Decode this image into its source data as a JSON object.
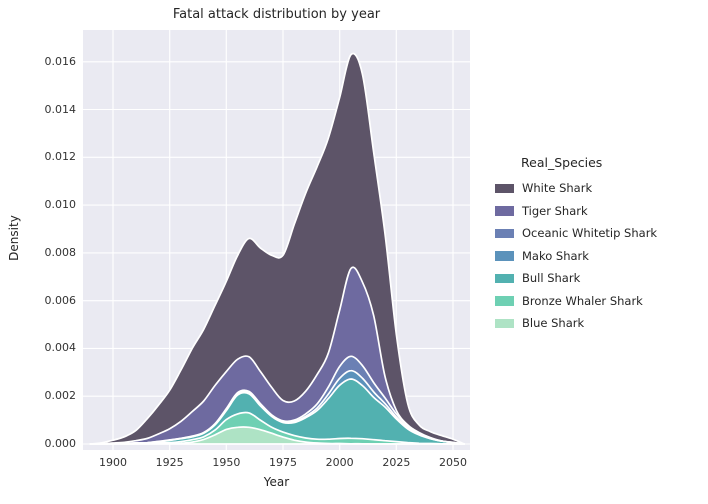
{
  "colors": {
    "figure_bg": "#ffffff",
    "plot_bg": "#eaeaf2",
    "grid": "#ffffff",
    "boundary_stroke": "#ffffff",
    "text": "#262626"
  },
  "chart_data": {
    "type": "area",
    "subtype": "stacked-kde-density",
    "title": "Fatal attack distribution by year",
    "xlabel": "Year",
    "ylabel": "Density",
    "legend_title": "Real_Species",
    "legend_position": "right",
    "grid": true,
    "xlim": [
      1887,
      2057
    ],
    "ylim": [
      0,
      0.0172
    ],
    "x_tick_values": [
      1900,
      1925,
      1950,
      1975,
      2000,
      2025,
      2050
    ],
    "x_tick_labels": [
      "1900",
      "1925",
      "1950",
      "1975",
      "2000",
      "2025",
      "2050"
    ],
    "y_tick_values": [
      0,
      0.002,
      0.004,
      0.006,
      0.008,
      0.01,
      0.012,
      0.014,
      0.016
    ],
    "y_tick_labels": [
      "0.000",
      "0.002",
      "0.004",
      "0.006",
      "0.008",
      "0.010",
      "0.012",
      "0.014",
      "0.016"
    ],
    "density_scale": 0.0001,
    "x": [
      1890,
      1895,
      1900,
      1905,
      1910,
      1915,
      1920,
      1925,
      1930,
      1935,
      1940,
      1945,
      1950,
      1955,
      1960,
      1965,
      1970,
      1975,
      1980,
      1985,
      1990,
      1995,
      2000,
      2005,
      2010,
      2015,
      2020,
      2025,
      2030,
      2035,
      2040,
      2045,
      2050,
      2055
    ],
    "series": [
      {
        "name": "White Shark",
        "color": "#5d5468",
        "values": [
          0,
          0.4,
          1.2,
          2.3,
          4.2,
          8.2,
          12,
          16.1,
          21.5,
          26.5,
          30,
          33.5,
          37.8,
          43.5,
          49.5,
          51.7,
          55.3,
          60.8,
          74,
          82.9,
          87,
          90,
          89,
          89.5,
          87.1,
          68.3,
          59.7,
          31.9,
          9,
          3.2,
          2.5,
          2.2,
          1.3,
          0
        ]
      },
      {
        "name": "Tiger Shark",
        "color": "#6e6aa0",
        "values": [
          0,
          0.1,
          0.2,
          0.5,
          1,
          1.8,
          3.1,
          4.7,
          7.1,
          10.3,
          13.2,
          16,
          15.5,
          14,
          14.5,
          13.5,
          11.5,
          8.5,
          8,
          9.5,
          12.3,
          14.2,
          23.6,
          36.8,
          35,
          28,
          9,
          1.5,
          0.6,
          0.5,
          0.2,
          0.1,
          0.1,
          0
        ]
      },
      {
        "name": "Oceanic Whitetip Shark",
        "color": "#6b80b4",
        "values": [
          0,
          0,
          0,
          0,
          0,
          0,
          0.1,
          0.1,
          0.1,
          0.2,
          0.2,
          0.3,
          0.4,
          0.5,
          0.5,
          0.5,
          0.4,
          0.4,
          0.6,
          1,
          1.7,
          3,
          5,
          6,
          5.3,
          3.9,
          2.4,
          1.3,
          0.7,
          0.3,
          0.2,
          0,
          0,
          0
        ]
      },
      {
        "name": "Mako Shark",
        "color": "#5b92bb",
        "values": [
          0,
          0,
          0,
          0,
          0,
          0,
          0.1,
          0.1,
          0.1,
          0.1,
          0.1,
          0.2,
          0.4,
          0.5,
          0.5,
          0.4,
          0.3,
          0.3,
          0.4,
          0.6,
          1,
          1.8,
          2.9,
          3.5,
          3.1,
          2.3,
          1.4,
          0.8,
          0.4,
          0.2,
          0.1,
          0,
          0,
          0
        ]
      },
      {
        "name": "Bull Shark",
        "color": "#52b1b0",
        "values": [
          0,
          0,
          0.1,
          0.1,
          0.1,
          0.2,
          0.4,
          0.9,
          1.2,
          1.2,
          1.5,
          2.2,
          3.8,
          7.9,
          8,
          6,
          4.5,
          4,
          5.5,
          8.5,
          12,
          17,
          22.3,
          24.8,
          22.3,
          17.7,
          14.1,
          9.5,
          5.7,
          3.5,
          2,
          1.1,
          0.6,
          0
        ]
      },
      {
        "name": "Bronze Whaler Shark",
        "color": "#6ed0b3",
        "values": [
          0,
          0,
          0.1,
          0.1,
          0.2,
          0.2,
          0.3,
          0.4,
          0.7,
          1,
          1.1,
          2,
          4.1,
          5.6,
          6,
          4,
          2.5,
          2.1,
          1.9,
          1.7,
          1.6,
          1.8,
          2.1,
          2.3,
          2.1,
          1.8,
          1.4,
          1,
          0.6,
          0.3,
          0.2,
          0.1,
          0,
          0
        ]
      },
      {
        "name": "Blue Shark",
        "color": "#aee3c5",
        "values": [
          0,
          0,
          0,
          0,
          0.1,
          0.1,
          0.2,
          0.2,
          0.3,
          0.8,
          1.9,
          3.8,
          6.1,
          7,
          7,
          6,
          4.5,
          2.9,
          1.6,
          0.8,
          0.4,
          0.2,
          0.2,
          0.1,
          0.1,
          0,
          0,
          0,
          0,
          0,
          0,
          0,
          0,
          0
        ]
      }
    ]
  }
}
